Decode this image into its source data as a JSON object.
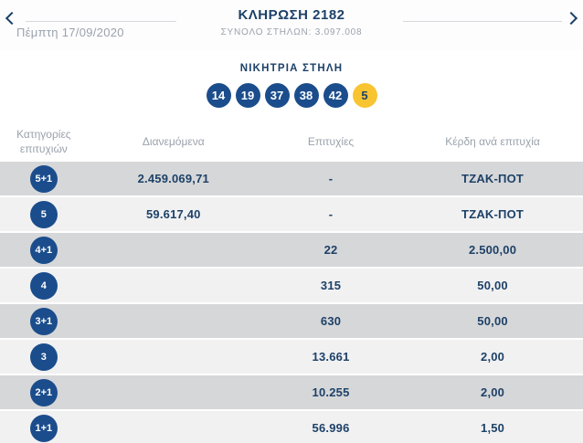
{
  "header": {
    "title": "ΚΛΗΡΩΣΗ 2182",
    "total_columns": "ΣΥΝΟΛΟ ΣΤΗΛΩΝ: 3.097.008",
    "date": "Πέμπτη 17/09/2020"
  },
  "winning": {
    "label": "ΝΙΚΗΤΡΙΑ ΣΤΗΛΗ",
    "numbers": [
      "14",
      "19",
      "37",
      "38",
      "42"
    ],
    "joker": "5"
  },
  "table": {
    "headers": {
      "category_line1": "Κατηγορίες",
      "category_line2": "επιτυχιών",
      "distributed": "Διανεμόμενα",
      "winners": "Επιτυχίες",
      "prize": "Κέρδη ανά επιτυχία"
    },
    "rows": [
      {
        "category": "5+1",
        "distributed": "2.459.069,71",
        "winners": "-",
        "prize": "ΤΖΑΚ-ΠΟΤ"
      },
      {
        "category": "5",
        "distributed": "59.617,40",
        "winners": "-",
        "prize": "ΤΖΑΚ-ΠΟΤ"
      },
      {
        "category": "4+1",
        "distributed": "",
        "winners": "22",
        "prize": "2.500,00"
      },
      {
        "category": "4",
        "distributed": "",
        "winners": "315",
        "prize": "50,00"
      },
      {
        "category": "3+1",
        "distributed": "",
        "winners": "630",
        "prize": "50,00"
      },
      {
        "category": "3",
        "distributed": "",
        "winners": "13.661",
        "prize": "2,00"
      },
      {
        "category": "2+1",
        "distributed": "",
        "winners": "10.255",
        "prize": "2,00"
      },
      {
        "category": "1+1",
        "distributed": "",
        "winners": "56.996",
        "prize": "1,50"
      }
    ]
  },
  "colors": {
    "navy_text": "#1d4168",
    "ball_blue": "#1b4d8c",
    "joker_yellow": "#f9c431",
    "row_light": "#f1f1f2",
    "row_dark": "#d6d7d9",
    "muted_gray": "#9aa2ac"
  }
}
